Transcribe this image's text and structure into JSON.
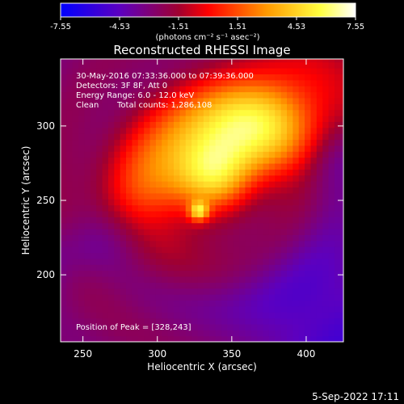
{
  "colorbar": {
    "ticks": [
      "-7.55",
      "-4.53",
      "-1.51",
      "1.51",
      "4.53",
      "7.55"
    ],
    "tick_values": [
      -7.55,
      -4.53,
      -1.51,
      1.51,
      4.53,
      7.55
    ],
    "range": [
      -7.55,
      7.55
    ],
    "units_label": "(photons cm⁻² s⁻¹ asec⁻²)",
    "colormap": [
      "#0000ff",
      "#5c00c0",
      "#a00030",
      "#ff0000",
      "#ff9a00",
      "#ffff40",
      "#ffffff"
    ]
  },
  "chart_data": {
    "type": "heatmap",
    "title": "Reconstructed RHESSI Image",
    "xlabel": "Heliocentric X (arcsec)",
    "ylabel": "Heliocentric Y (arcsec)",
    "xlim": [
      235,
      425
    ],
    "ylim": [
      155,
      345
    ],
    "xticks": [
      "250",
      "300",
      "350",
      "400"
    ],
    "xtick_values": [
      250,
      300,
      350,
      400
    ],
    "yticks": [
      "200",
      "250",
      "300"
    ],
    "ytick_values": [
      200,
      250,
      300
    ],
    "pixel_size_arcsec": 4,
    "peak_position": [
      328,
      243
    ],
    "annotations": {
      "time": "30-May-2016 07:33:36.000 to 07:39:36.000",
      "detectors": "Detectors: 3F 8F, Att 0",
      "energy": "Energy Range: 6.0 - 12.0 keV",
      "method": "Clean",
      "counts": "Total counts: 1,286,108",
      "peak": "Position of Peak = [328,243]"
    }
  },
  "footer": {
    "date": "5-Sep-2022 17:11"
  }
}
